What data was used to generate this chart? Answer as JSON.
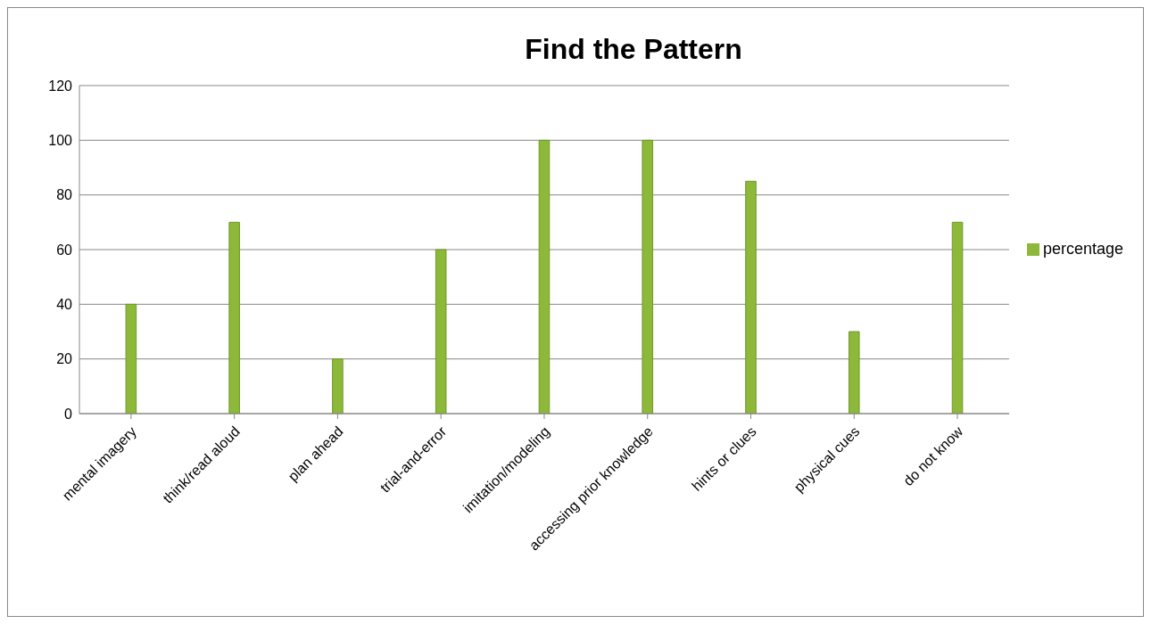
{
  "chart_data": {
    "type": "bar",
    "title": "Find the Pattern",
    "categories": [
      "mental imagery",
      "think/read aloud",
      "plan ahead",
      "trial-and-error",
      "imitation/modeling",
      "accessing prior knowledge",
      "hints or clues",
      "physical cues",
      "do not know"
    ],
    "series": [
      {
        "name": "percentage",
        "color": "#8db83a",
        "values": [
          40,
          70,
          20,
          60,
          100,
          100,
          85,
          30,
          70
        ]
      }
    ],
    "ylim": [
      0,
      120
    ],
    "yticks": [
      0,
      20,
      40,
      60,
      80,
      100,
      120
    ],
    "grid": "y",
    "legend": "right"
  }
}
